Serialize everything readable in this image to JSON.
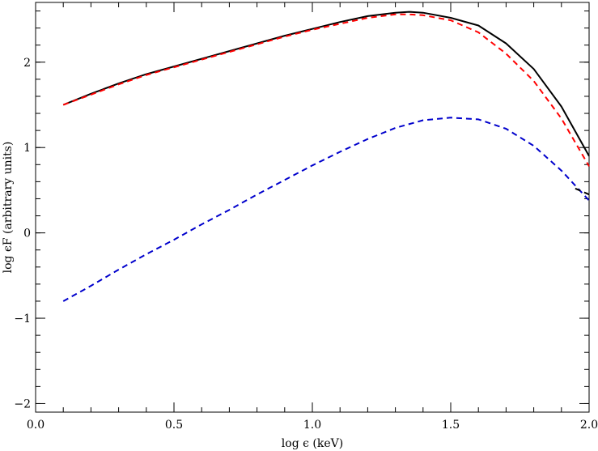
{
  "chart_data": {
    "type": "line",
    "title": "",
    "xlabel": "log ϵ   (keV)",
    "ylabel": "log ϵF (arbitrary units)",
    "xlim": [
      0.0,
      2.0
    ],
    "ylim": [
      -2.1,
      2.7
    ],
    "x_ticks": [
      {
        "value": 0.0,
        "label": "0.0"
      },
      {
        "value": 0.5,
        "label": "0.5"
      },
      {
        "value": 1.0,
        "label": "1.0"
      },
      {
        "value": 1.5,
        "label": "1.5"
      },
      {
        "value": 2.0,
        "label": "2.0"
      }
    ],
    "y_ticks": [
      {
        "value": -2,
        "label": "−2"
      },
      {
        "value": -1,
        "label": "−1"
      },
      {
        "value": 0,
        "label": "0"
      },
      {
        "value": 1,
        "label": "1"
      },
      {
        "value": 2,
        "label": "2"
      }
    ],
    "grid": false,
    "legend": "none",
    "series": [
      {
        "color": "#000000",
        "style": "solid",
        "x": [
          0.1,
          0.2,
          0.3,
          0.4,
          0.5,
          0.6,
          0.7,
          0.8,
          0.9,
          1.0,
          1.1,
          1.2,
          1.3,
          1.35,
          1.4,
          1.5,
          1.6,
          1.7,
          1.8,
          1.9,
          2.0
        ],
        "y": [
          1.5,
          1.63,
          1.75,
          1.86,
          1.95,
          2.04,
          2.13,
          2.22,
          2.31,
          2.39,
          2.47,
          2.54,
          2.58,
          2.59,
          2.58,
          2.52,
          2.43,
          2.22,
          1.92,
          1.48,
          0.9
        ]
      },
      {
        "color": "#ff0000",
        "style": "dashed",
        "x": [
          0.1,
          0.2,
          0.3,
          0.4,
          0.5,
          0.6,
          0.7,
          0.8,
          0.9,
          1.0,
          1.1,
          1.2,
          1.3,
          1.35,
          1.4,
          1.5,
          1.6,
          1.7,
          1.8,
          1.9,
          2.0
        ],
        "y": [
          1.5,
          1.62,
          1.74,
          1.85,
          1.94,
          2.03,
          2.12,
          2.21,
          2.3,
          2.38,
          2.45,
          2.52,
          2.56,
          2.56,
          2.55,
          2.49,
          2.35,
          2.1,
          1.78,
          1.34,
          0.78
        ]
      },
      {
        "color": "#0000cc",
        "style": "dashed",
        "x": [
          0.1,
          0.2,
          0.3,
          0.4,
          0.5,
          0.6,
          0.7,
          0.8,
          0.9,
          1.0,
          1.1,
          1.2,
          1.3,
          1.4,
          1.5,
          1.6,
          1.7,
          1.8,
          1.9,
          2.0
        ],
        "y": [
          -0.8,
          -0.62,
          -0.43,
          -0.25,
          -0.08,
          0.1,
          0.27,
          0.45,
          0.62,
          0.79,
          0.95,
          1.1,
          1.23,
          1.32,
          1.35,
          1.33,
          1.22,
          1.02,
          0.73,
          0.38
        ]
      },
      {
        "color": "#000000",
        "style": "dashed",
        "x": [
          1.95,
          2.0
        ],
        "y": [
          0.52,
          0.45
        ]
      }
    ]
  }
}
